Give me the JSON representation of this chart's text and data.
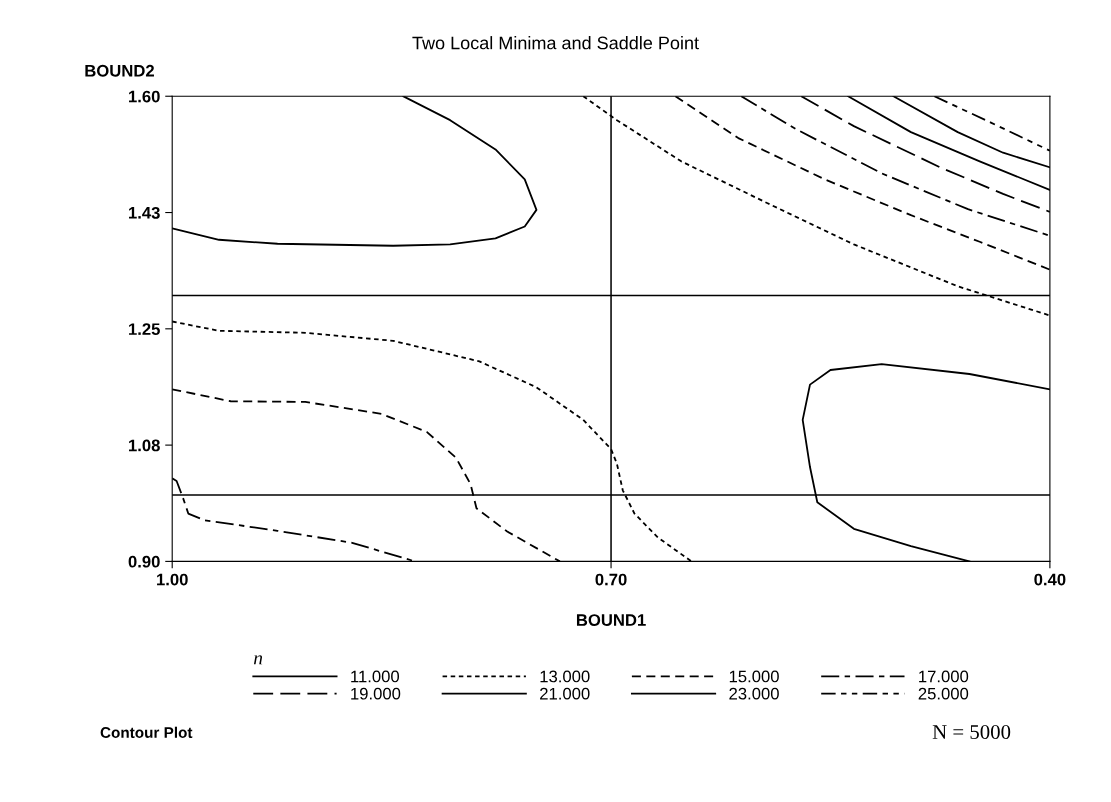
{
  "chart_data": {
    "type": "line",
    "title": "Two Local Minima and Saddle Point",
    "xlabel": "BOUND1",
    "ylabel": "BOUND2",
    "legend_title": "n",
    "legend": "bottom",
    "grid": false,
    "marker": "none",
    "xlim": [
      1.0,
      0.4
    ],
    "xticks": [
      {
        "value": 1.0,
        "label": "1.00"
      },
      {
        "value": 0.7,
        "label": "0.70"
      },
      {
        "value": 0.4,
        "label": "0.40"
      }
    ],
    "ylim": [
      0.9,
      1.6
    ],
    "yticks": [
      {
        "value": 0.9,
        "label": "0.90"
      },
      {
        "value": 1.075,
        "label": "1.08"
      },
      {
        "value": 1.25,
        "label": "1.25"
      },
      {
        "value": 1.425,
        "label": "1.43"
      },
      {
        "value": 1.6,
        "label": "1.60"
      }
    ],
    "ref_lines": [
      {
        "axis": "x",
        "value": 0.7,
        "color": "#000000"
      },
      {
        "axis": "y",
        "value": 1.3,
        "color": "#000000"
      },
      {
        "axis": "y",
        "value": 1.0,
        "color": "#000000"
      }
    ],
    "annotations": [
      "Contour Plot",
      "N = 5000"
    ],
    "series": [
      {
        "name": "11.000",
        "color": "#000000",
        "line_style": "solid",
        "x": [
          1.0,
          0.968,
          0.928,
          0.849,
          0.81,
          0.779,
          0.759,
          0.751,
          0.759,
          0.779,
          0.81,
          0.842
        ],
        "values": [
          1.401,
          1.384,
          1.378,
          1.375,
          1.377,
          1.386,
          1.404,
          1.429,
          1.475,
          1.52,
          1.564,
          1.6
        ]
      },
      {
        "name": "13.000",
        "color": "#000000",
        "line_style": "dotted",
        "x": [
          0.719,
          0.696,
          0.652,
          0.593,
          0.534,
          0.463,
          0.4
        ],
        "values": [
          1.6,
          1.564,
          1.502,
          1.439,
          1.377,
          1.314,
          1.27
        ]
      },
      {
        "name": "15.000",
        "color": "#000000",
        "line_style": "dashed",
        "x": [
          0.656,
          0.613,
          0.554,
          0.495,
          0.448,
          0.4
        ],
        "values": [
          1.6,
          1.537,
          1.475,
          1.421,
          1.381,
          1.339
        ]
      },
      {
        "name": "17.000",
        "color": "#000000",
        "line_style": "dashdot",
        "x": [
          0.611,
          0.574,
          0.515,
          0.456,
          0.4
        ],
        "values": [
          1.6,
          1.551,
          1.484,
          1.43,
          1.39
        ]
      },
      {
        "name": "19.000",
        "color": "#000000",
        "line_style": "longdash",
        "x": [
          0.57,
          0.534,
          0.475,
          0.432,
          0.4
        ],
        "values": [
          1.6,
          1.555,
          1.493,
          1.453,
          1.426
        ]
      },
      {
        "name": "21.000",
        "color": "#000000",
        "line_style": "solid",
        "x": [
          0.538,
          0.495,
          0.448,
          0.4
        ],
        "values": [
          1.6,
          1.546,
          1.502,
          1.459
        ]
      },
      {
        "name": "23.000",
        "color": "#000000",
        "line_style": "solid",
        "x": [
          0.507,
          0.463,
          0.432,
          0.4
        ],
        "values": [
          1.6,
          1.546,
          1.515,
          1.493
        ]
      },
      {
        "name": "25.000",
        "color": "#000000",
        "line_style": "dashdotdot",
        "x": [
          0.479,
          0.44,
          0.4
        ],
        "values": [
          1.6,
          1.56,
          1.518
        ]
      },
      {
        "color": "#000000",
        "line_style": "solid",
        "x": [
          0.4,
          0.455,
          0.515,
          0.55,
          0.564,
          0.569,
          0.564,
          0.559,
          0.534,
          0.495,
          0.455
        ],
        "values": [
          1.159,
          1.182,
          1.197,
          1.188,
          1.166,
          1.113,
          1.042,
          0.989,
          0.949,
          0.923,
          0.9
        ]
      },
      {
        "color": "#000000",
        "line_style": "dotted",
        "x": [
          1.0,
          0.968,
          0.909,
          0.849,
          0.79,
          0.751,
          0.719,
          0.7,
          0.696,
          0.692,
          0.684,
          0.668,
          0.645
        ],
        "values": [
          1.261,
          1.247,
          1.244,
          1.232,
          1.201,
          1.162,
          1.113,
          1.069,
          1.047,
          1.007,
          0.972,
          0.936,
          0.9
        ]
      },
      {
        "color": "#000000",
        "line_style": "dashed",
        "x": [
          1.0,
          0.96,
          0.909,
          0.857,
          0.826,
          0.806,
          0.796,
          0.792,
          0.771,
          0.735
        ],
        "values": [
          1.159,
          1.141,
          1.14,
          1.122,
          1.095,
          1.056,
          1.016,
          0.98,
          0.945,
          0.9
        ]
      },
      {
        "color": "#000000",
        "line_style": "dashdot",
        "x": [
          1.0,
          0.997,
          0.993,
          0.989,
          0.978,
          0.928,
          0.877,
          0.834
        ],
        "values": [
          1.025,
          1.021,
          0.998,
          0.972,
          0.962,
          0.946,
          0.928,
          0.9
        ]
      }
    ]
  }
}
